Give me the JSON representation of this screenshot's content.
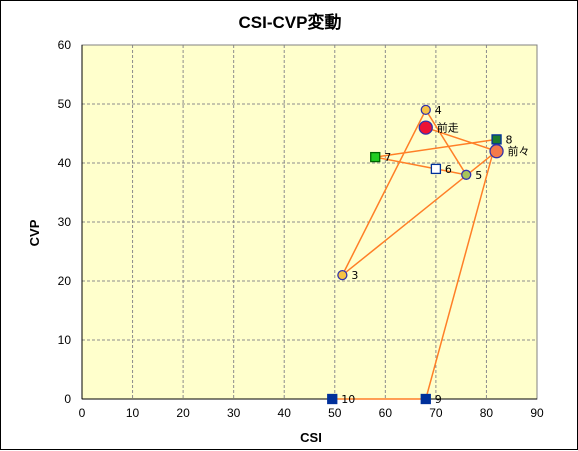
{
  "chart_data": {
    "type": "scatter",
    "title": "CSI-CVP変動",
    "xlabel": "CSI",
    "ylabel": "CVP",
    "xlim": [
      0,
      90
    ],
    "ylim": [
      0,
      60
    ],
    "xticks": [
      "0",
      "10",
      "20",
      "30",
      "40",
      "50",
      "60",
      "70",
      "80",
      "90"
    ],
    "yticks": [
      "0",
      "10",
      "20",
      "30",
      "40",
      "50",
      "60"
    ],
    "grid": true,
    "plot_background": "#ffffcc",
    "line_color": "#ff7f27",
    "points": [
      {
        "label": "10",
        "x": 49.5,
        "y": 0,
        "marker": "square",
        "fill": "#00309b",
        "stroke": "#00309b",
        "size": "small"
      },
      {
        "label": "9",
        "x": 68,
        "y": 0,
        "marker": "square",
        "fill": "#00309b",
        "stroke": "#00309b",
        "size": "small"
      },
      {
        "label": "8",
        "x": 82,
        "y": 44,
        "marker": "square",
        "fill": "#1e7b2e",
        "stroke": "#00309b",
        "size": "small"
      },
      {
        "label": "7",
        "x": 58,
        "y": 41,
        "marker": "square",
        "fill": "#22cc22",
        "stroke": "#006400",
        "size": "small"
      },
      {
        "label": "6",
        "x": 70,
        "y": 39,
        "marker": "square",
        "fill": "#ffffff",
        "stroke": "#00309b",
        "size": "small"
      },
      {
        "label": "5",
        "x": 76,
        "y": 38,
        "marker": "circle",
        "fill": "#a8c45a",
        "stroke": "#3333aa",
        "size": "small"
      },
      {
        "label": "4",
        "x": 68,
        "y": 49,
        "marker": "circle",
        "fill": "#f7c343",
        "stroke": "#3333aa",
        "size": "small"
      },
      {
        "label": "3",
        "x": 51.5,
        "y": 21,
        "marker": "circle",
        "fill": "#f7c343",
        "stroke": "#3333aa",
        "size": "small"
      },
      {
        "label": "前々",
        "x": 82,
        "y": 42,
        "marker": "circle",
        "fill": "#f47a4a",
        "stroke": "#3333aa",
        "size": "large"
      },
      {
        "label": "前走",
        "x": 68,
        "y": 46,
        "marker": "circle",
        "fill": "#ee1133",
        "stroke": "#3333aa",
        "size": "large"
      }
    ],
    "path_order": [
      "10",
      "9",
      "8",
      "7",
      "6",
      "5",
      "4",
      "3",
      "前々",
      "前走"
    ]
  }
}
